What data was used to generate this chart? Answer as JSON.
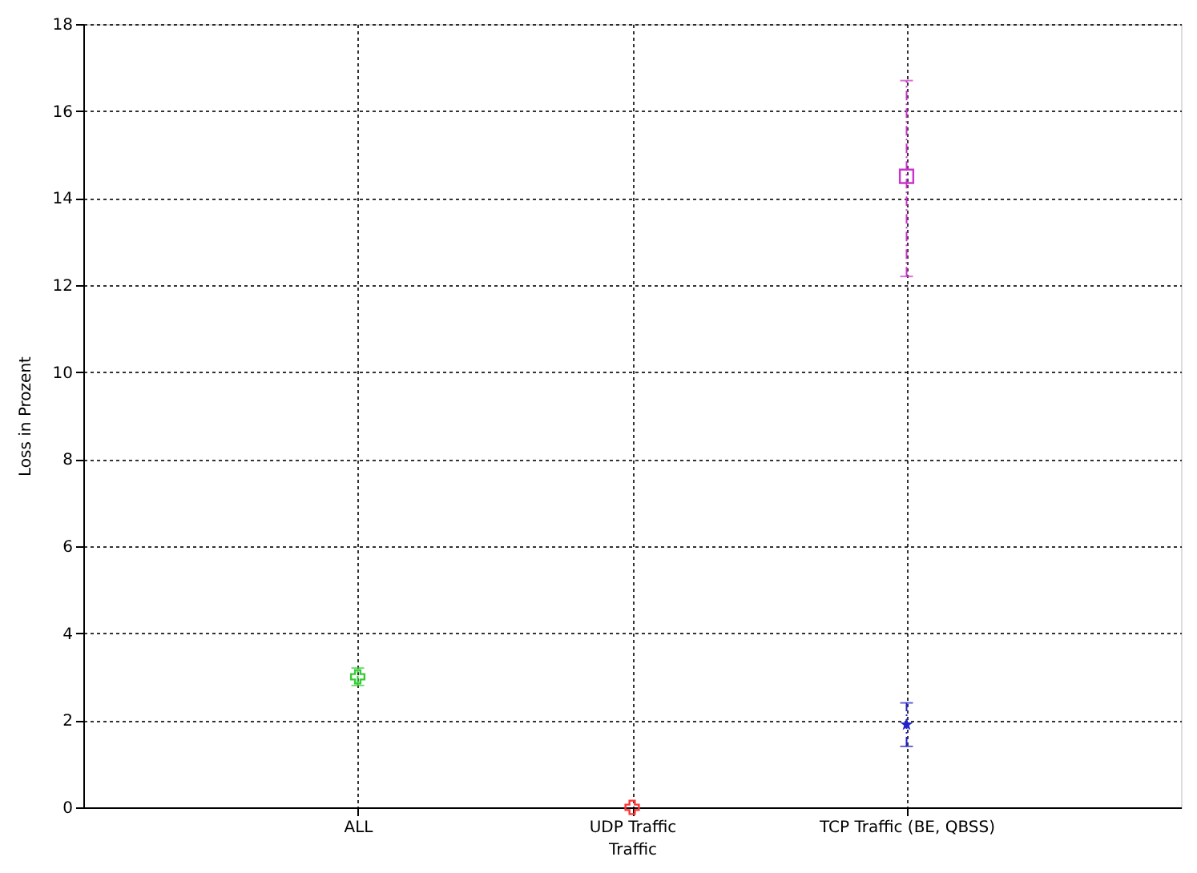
{
  "chart_data": {
    "type": "scatter",
    "xlabel": "Traffic",
    "ylabel": "Loss in Prozent",
    "categories": [
      "ALL",
      "UDP Traffic",
      "TCP Traffic (BE, QBSS)"
    ],
    "ylim": [
      0,
      18
    ],
    "yticks": [
      0,
      2,
      4,
      6,
      8,
      10,
      12,
      14,
      16,
      18
    ],
    "grid": true,
    "series": [
      {
        "color": "#33cc33",
        "marker": "cross",
        "values": [
          3.0,
          null,
          null
        ],
        "errors": [
          [
            2.8,
            3.2
          ],
          null,
          null
        ]
      },
      {
        "color": "#ff3333",
        "marker": "cross",
        "values": [
          null,
          0,
          null
        ]
      },
      {
        "color": "#cc33cc",
        "marker": "square",
        "values": [
          null,
          null,
          14.5
        ],
        "errors": [
          null,
          null,
          [
            12.2,
            16.7
          ]
        ]
      },
      {
        "color": "#2222cc",
        "marker": "star",
        "values": [
          null,
          null,
          1.9
        ],
        "errors": [
          null,
          null,
          [
            1.4,
            2.4
          ]
        ]
      }
    ]
  }
}
